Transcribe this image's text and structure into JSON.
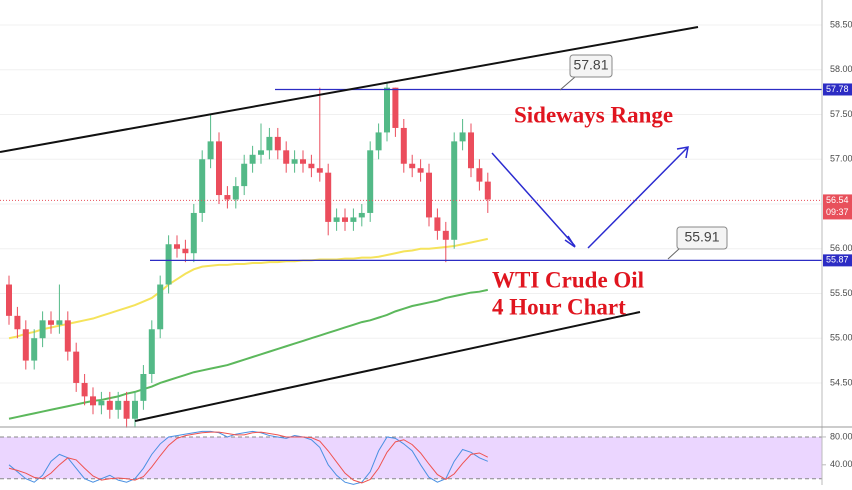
{
  "chart_data": {
    "type": "candlestick",
    "open": [
      55.6,
      55.25,
      55.1,
      54.75,
      55.0,
      55.2,
      55.15,
      55.2,
      54.85,
      54.5,
      54.35,
      54.25,
      54.3,
      54.2,
      54.3,
      54.1,
      54.3,
      54.6,
      55.1,
      55.6,
      56.05,
      56.0,
      55.95,
      56.4,
      57.0,
      57.2,
      56.6,
      56.55,
      56.7,
      56.95,
      57.05,
      57.1,
      57.25,
      57.1,
      56.95,
      57.0,
      56.95,
      56.9,
      56.85,
      56.3,
      56.35,
      56.3,
      56.35,
      56.4,
      57.1,
      57.3,
      57.8,
      57.35,
      56.95,
      56.9,
      56.85,
      56.35,
      56.2,
      56.1,
      57.2,
      57.3,
      56.9,
      56.75
    ],
    "high": [
      55.7,
      55.35,
      55.2,
      55.1,
      55.3,
      55.3,
      55.6,
      55.3,
      54.95,
      54.6,
      54.45,
      54.4,
      54.4,
      54.4,
      54.4,
      54.4,
      54.7,
      55.2,
      55.7,
      56.15,
      56.15,
      56.1,
      56.5,
      57.1,
      57.5,
      57.3,
      56.7,
      56.8,
      57.05,
      57.15,
      57.4,
      57.35,
      57.35,
      57.2,
      57.1,
      57.1,
      57.05,
      57.8,
      56.95,
      56.45,
      56.45,
      56.45,
      56.5,
      57.2,
      57.4,
      57.85,
      57.8,
      57.45,
      57.05,
      57.0,
      56.95,
      56.45,
      56.3,
      57.3,
      57.45,
      57.4,
      57.0,
      56.85
    ],
    "low": [
      55.15,
      55.0,
      54.65,
      54.65,
      54.9,
      55.05,
      55.05,
      54.75,
      54.4,
      54.25,
      54.15,
      54.15,
      54.1,
      54.1,
      54.0,
      54.0,
      54.2,
      54.5,
      55.0,
      55.5,
      55.9,
      55.85,
      55.85,
      56.3,
      56.9,
      56.5,
      56.45,
      56.45,
      56.6,
      56.85,
      56.95,
      57.0,
      57.0,
      56.85,
      56.85,
      56.85,
      56.8,
      56.75,
      56.15,
      56.2,
      56.2,
      56.2,
      56.25,
      56.3,
      57.0,
      57.2,
      57.25,
      56.85,
      56.8,
      56.75,
      56.25,
      56.1,
      55.85,
      56.0,
      57.1,
      56.8,
      56.65,
      56.4
    ],
    "close": [
      55.25,
      55.1,
      54.75,
      55.0,
      55.2,
      55.15,
      55.2,
      54.85,
      54.5,
      54.35,
      54.25,
      54.3,
      54.2,
      54.3,
      54.1,
      54.3,
      54.6,
      55.1,
      55.6,
      56.05,
      56.0,
      55.95,
      56.4,
      57.0,
      57.2,
      56.6,
      56.55,
      56.7,
      56.95,
      57.05,
      57.1,
      57.25,
      57.1,
      56.95,
      57.0,
      56.95,
      56.9,
      56.85,
      56.3,
      56.35,
      56.3,
      56.35,
      56.4,
      57.1,
      57.3,
      57.8,
      57.35,
      56.95,
      56.9,
      56.85,
      56.35,
      56.2,
      56.1,
      57.2,
      57.3,
      56.9,
      56.75,
      56.55
    ],
    "up_color": "#53b987",
    "down_color": "#eb4d5c",
    "series": [
      {
        "color": "#f5e35b",
        "values": [
          55.0,
          55.02,
          55.05,
          55.07,
          55.1,
          55.12,
          55.14,
          55.16,
          55.18,
          55.2,
          55.22,
          55.25,
          55.28,
          55.31,
          55.34,
          55.37,
          55.41,
          55.45,
          55.52,
          55.6,
          55.66,
          55.72,
          55.77,
          55.8,
          55.81,
          55.82,
          55.82,
          55.83,
          55.83,
          55.84,
          55.84,
          55.85,
          55.85,
          55.86,
          55.86,
          55.87,
          55.87,
          55.88,
          55.88,
          55.88,
          55.89,
          55.89,
          55.9,
          55.9,
          55.91,
          55.93,
          55.95,
          55.97,
          55.98,
          56.0,
          56.0,
          56.01,
          56.02,
          56.03,
          56.05,
          56.07,
          56.09,
          56.11
        ]
      },
      {
        "color": "#5cb85c",
        "values": [
          54.1,
          54.12,
          54.14,
          54.16,
          54.18,
          54.2,
          54.22,
          54.24,
          54.26,
          54.28,
          54.3,
          54.31,
          54.33,
          54.35,
          54.38,
          54.4,
          54.43,
          54.46,
          54.5,
          54.53,
          54.56,
          54.59,
          54.62,
          54.64,
          54.66,
          54.68,
          54.7,
          54.73,
          54.76,
          54.79,
          54.82,
          54.85,
          54.88,
          54.91,
          54.94,
          54.97,
          55.0,
          55.03,
          55.06,
          55.09,
          55.12,
          55.15,
          55.18,
          55.2,
          55.23,
          55.26,
          55.3,
          55.33,
          55.36,
          55.38,
          55.4,
          55.42,
          55.45,
          55.47,
          55.49,
          55.51,
          55.52,
          55.54
        ]
      }
    ],
    "ylim": [
      54.03,
      58.78
    ],
    "yticks": [
      {
        "value": 54.5,
        "label": "54.50"
      },
      {
        "value": 55,
        "label": "55.00"
      },
      {
        "value": 55.5,
        "label": "55.50"
      },
      {
        "value": 56,
        "label": "56.00"
      },
      {
        "value": 56.5,
        "label": "56.50"
      },
      {
        "value": 57,
        "label": "57.00"
      },
      {
        "value": 57.5,
        "label": "57.50"
      },
      {
        "value": 58,
        "label": "58.00"
      },
      {
        "value": 58.5,
        "label": "58.50"
      }
    ],
    "levels": [
      {
        "value": 57.78,
        "color": "#2c2cc4"
      },
      {
        "value": 55.87,
        "color": "#2c2cc4"
      }
    ],
    "last_price": {
      "value": 56.54,
      "timer": "09:37",
      "color": "#e8505b"
    },
    "annotations": [
      "57.81",
      "55.91",
      "Sideways Range",
      "WTI Crude Oil",
      "4 Hour Chart"
    ],
    "oscillator": {
      "type": "line",
      "ylim": [
        11,
        90
      ],
      "yticks": [
        {
          "value": 80,
          "label": "80.00"
        },
        {
          "value": 40,
          "label": "40.00"
        }
      ],
      "band": [
        20,
        80
      ],
      "band_color": "#e6ccff",
      "series": [
        {
          "color": "#4a90e2",
          "values": [
            40,
            30,
            20,
            15,
            25,
            45,
            55,
            50,
            35,
            20,
            15,
            20,
            25,
            18,
            15,
            20,
            35,
            55,
            70,
            80,
            82,
            84,
            86,
            88,
            88,
            86,
            80,
            84,
            86,
            88,
            86,
            82,
            80,
            78,
            82,
            80,
            76,
            65,
            40,
            25,
            15,
            12,
            15,
            30,
            60,
            80,
            78,
            70,
            60,
            40,
            22,
            15,
            20,
            45,
            62,
            58,
            50,
            45
          ]
        },
        {
          "color": "#ef5350",
          "values": [
            35,
            32,
            28,
            22,
            20,
            28,
            40,
            50,
            47,
            35,
            24,
            18,
            20,
            21,
            20,
            18,
            23,
            37,
            53,
            68,
            78,
            82,
            84,
            86,
            87,
            87,
            85,
            83,
            83,
            86,
            87,
            85,
            83,
            80,
            80,
            80,
            79,
            74,
            60,
            44,
            28,
            18,
            14,
            19,
            35,
            58,
            73,
            76,
            69,
            57,
            41,
            26,
            19,
            27,
            42,
            55,
            57,
            51
          ]
        }
      ]
    },
    "grid": true
  }
}
